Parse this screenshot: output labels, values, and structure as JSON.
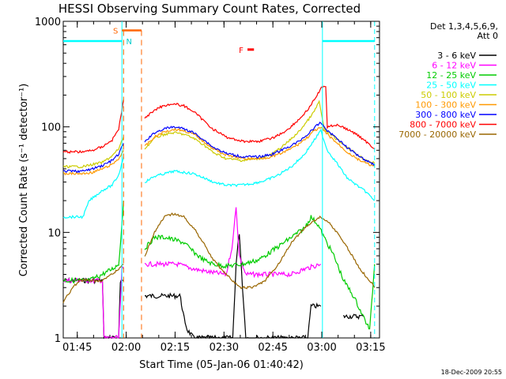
{
  "chart_data": {
    "type": "line",
    "title": "HESSI Observing Summary Count Rates, Corrected",
    "xlabel": "Start Time (05-Jan-06 01:40:42)",
    "ylabel": "Corrected Count Rate (s⁻¹ detector⁻¹)",
    "ylim": [
      1,
      1000
    ],
    "yscale": "log",
    "xlim_minutes": [
      0,
      97
    ],
    "x_ticks": [
      {
        "m": 4.3,
        "label": "01:45"
      },
      {
        "m": 19.3,
        "label": "02:00"
      },
      {
        "m": 34.3,
        "label": "02:15"
      },
      {
        "m": 49.3,
        "label": "02:30"
      },
      {
        "m": 64.3,
        "label": "02:45"
      },
      {
        "m": 79.3,
        "label": "03:00"
      },
      {
        "m": 94.3,
        "label": "03:15"
      }
    ],
    "y_ticks": [
      {
        "v": 1,
        "label": "1"
      },
      {
        "v": 10,
        "label": "10"
      },
      {
        "v": 100,
        "label": "100"
      },
      {
        "v": 1000,
        "label": "1000"
      }
    ],
    "legend_header": [
      "Det 1,3,4,5,6,9,",
      "Att 0"
    ],
    "legend_position": "right",
    "series": [
      {
        "name": "3 - 6 keV",
        "color": "#000000",
        "points": [
          [
            0,
            3.5
          ],
          [
            12,
            3.5
          ],
          [
            12.5,
            1.0
          ],
          [
            17,
            1.0
          ],
          [
            17.5,
            3.5
          ],
          [
            18.5,
            3.5
          ]
        ],
        "points2": [
          [
            25,
            2.5
          ],
          [
            36,
            2.5
          ],
          [
            36.5,
            1.8
          ],
          [
            38,
            1.2
          ],
          [
            40,
            1.0
          ],
          [
            46,
            1.0
          ],
          [
            52,
            1.0
          ],
          [
            53,
            5
          ],
          [
            54,
            10
          ],
          [
            55,
            3
          ],
          [
            56,
            1.0
          ],
          [
            75,
            1.0
          ],
          [
            76,
            2.0
          ],
          [
            79,
            2.0
          ]
        ],
        "points3": [
          [
            86,
            1.6
          ],
          [
            92,
            1.6
          ]
        ]
      },
      {
        "name": "6 - 12 keV",
        "color": "#ff00ff",
        "points": [
          [
            0,
            3.5
          ],
          [
            12,
            3.5
          ],
          [
            12.5,
            1.0
          ],
          [
            17,
            1.0
          ],
          [
            18,
            4.5
          ],
          [
            18.5,
            4.5
          ]
        ],
        "points2": [
          [
            25,
            5
          ],
          [
            30,
            5
          ],
          [
            35,
            5
          ],
          [
            40,
            4.5
          ],
          [
            45,
            4.2
          ],
          [
            50,
            4
          ],
          [
            52,
            8
          ],
          [
            53,
            18
          ],
          [
            54,
            6
          ],
          [
            56,
            4
          ],
          [
            62,
            4
          ],
          [
            70,
            4
          ],
          [
            74,
            4.5
          ],
          [
            79,
            5
          ]
        ]
      },
      {
        "name": "12 - 25 keV",
        "color": "#00cc00",
        "points": [
          [
            0,
            3.5
          ],
          [
            8,
            3.5
          ],
          [
            12,
            4.0
          ],
          [
            15,
            4.5
          ],
          [
            17,
            5
          ],
          [
            18,
            12
          ],
          [
            18.5,
            20
          ]
        ],
        "points2": [
          [
            25,
            7
          ],
          [
            28,
            9
          ],
          [
            31,
            9
          ],
          [
            34,
            8.5
          ],
          [
            37,
            8
          ],
          [
            40,
            6.5
          ],
          [
            43,
            5.5
          ],
          [
            46,
            5
          ],
          [
            50,
            4.8
          ],
          [
            55,
            5
          ],
          [
            60,
            5.5
          ],
          [
            65,
            7
          ],
          [
            70,
            9
          ],
          [
            74,
            11
          ],
          [
            76,
            14
          ],
          [
            78,
            12
          ],
          [
            80,
            9
          ],
          [
            83,
            6
          ],
          [
            86,
            3.5
          ],
          [
            89,
            2.5
          ],
          [
            92,
            1.6
          ],
          [
            94,
            1.2
          ],
          [
            95.5,
            5
          ]
        ]
      },
      {
        "name": "25 - 50 keV",
        "color": "#00ffff",
        "points": [
          [
            0,
            14
          ],
          [
            6,
            14
          ],
          [
            8,
            20
          ],
          [
            12,
            25
          ],
          [
            15,
            28
          ],
          [
            17,
            35
          ],
          [
            18.5,
            52
          ]
        ],
        "points2": [
          [
            25,
            30
          ],
          [
            28,
            34
          ],
          [
            31,
            36
          ],
          [
            34,
            38
          ],
          [
            37,
            37
          ],
          [
            40,
            36
          ],
          [
            43,
            33
          ],
          [
            46,
            30
          ],
          [
            50,
            28
          ],
          [
            54,
            28
          ],
          [
            58,
            29
          ],
          [
            62,
            31
          ],
          [
            66,
            35
          ],
          [
            70,
            42
          ],
          [
            74,
            55
          ],
          [
            77,
            75
          ],
          [
            79,
            92
          ],
          [
            81,
            60
          ],
          [
            84,
            45
          ],
          [
            87,
            33
          ],
          [
            90,
            28
          ],
          [
            93,
            24
          ],
          [
            95.5,
            20
          ]
        ]
      },
      {
        "name": "50 - 100 keV",
        "color": "#cccc00",
        "points": [
          [
            0,
            42
          ],
          [
            6,
            42
          ],
          [
            9,
            44
          ],
          [
            12,
            46
          ],
          [
            15,
            53
          ],
          [
            17,
            62
          ],
          [
            18.5,
            80
          ]
        ],
        "points2": [
          [
            25,
            62
          ],
          [
            28,
            78
          ],
          [
            31,
            85
          ],
          [
            34,
            88
          ],
          [
            37,
            85
          ],
          [
            40,
            78
          ],
          [
            43,
            68
          ],
          [
            46,
            57
          ],
          [
            50,
            50
          ],
          [
            55,
            48
          ],
          [
            60,
            50
          ],
          [
            64,
            55
          ],
          [
            68,
            68
          ],
          [
            72,
            88
          ],
          [
            75,
            115
          ],
          [
            77,
            140
          ],
          [
            78.5,
            175
          ],
          [
            80,
            95
          ],
          [
            83,
            80
          ],
          [
            86,
            68
          ],
          [
            89,
            58
          ],
          [
            92,
            50
          ],
          [
            95.5,
            45
          ]
        ]
      },
      {
        "name": "100 - 300 keV",
        "color": "#ff9900",
        "points": [
          [
            0,
            36
          ],
          [
            6,
            36
          ],
          [
            9,
            37
          ],
          [
            12,
            40
          ],
          [
            15,
            44
          ],
          [
            17,
            50
          ],
          [
            18.5,
            60
          ]
        ],
        "points2": [
          [
            25,
            65
          ],
          [
            28,
            80
          ],
          [
            31,
            90
          ],
          [
            34,
            95
          ],
          [
            37,
            92
          ],
          [
            40,
            85
          ],
          [
            43,
            73
          ],
          [
            46,
            62
          ],
          [
            50,
            54
          ],
          [
            55,
            50
          ],
          [
            60,
            50
          ],
          [
            64,
            52
          ],
          [
            68,
            58
          ],
          [
            72,
            68
          ],
          [
            75,
            80
          ],
          [
            77,
            92
          ],
          [
            79,
            98
          ],
          [
            81,
            85
          ],
          [
            84,
            70
          ],
          [
            87,
            58
          ],
          [
            90,
            50
          ],
          [
            93,
            45
          ],
          [
            95.5,
            42
          ]
        ]
      },
      {
        "name": "300 - 800 keV",
        "color": "#0000ff",
        "points": [
          [
            0,
            38
          ],
          [
            6,
            38
          ],
          [
            9,
            40
          ],
          [
            12,
            43
          ],
          [
            15,
            48
          ],
          [
            17,
            55
          ],
          [
            18.5,
            70
          ]
        ],
        "points2": [
          [
            25,
            72
          ],
          [
            28,
            88
          ],
          [
            31,
            96
          ],
          [
            34,
            100
          ],
          [
            37,
            96
          ],
          [
            40,
            88
          ],
          [
            43,
            76
          ],
          [
            46,
            64
          ],
          [
            50,
            56
          ],
          [
            55,
            52
          ],
          [
            60,
            52
          ],
          [
            64,
            55
          ],
          [
            68,
            62
          ],
          [
            72,
            72
          ],
          [
            75,
            85
          ],
          [
            77,
            98
          ],
          [
            79,
            110
          ],
          [
            81,
            92
          ],
          [
            84,
            78
          ],
          [
            87,
            64
          ],
          [
            90,
            55
          ],
          [
            93,
            48
          ],
          [
            95.5,
            44
          ]
        ]
      },
      {
        "name": "800 - 7000 keV",
        "color": "#ff0000",
        "points": [
          [
            0,
            58
          ],
          [
            6,
            58
          ],
          [
            9,
            60
          ],
          [
            12,
            65
          ],
          [
            15,
            75
          ],
          [
            17,
            95
          ],
          [
            18.5,
            180
          ]
        ],
        "points2": [
          [
            25,
            120
          ],
          [
            28,
            145
          ],
          [
            31,
            160
          ],
          [
            34,
            165
          ],
          [
            37,
            158
          ],
          [
            40,
            140
          ],
          [
            43,
            115
          ],
          [
            46,
            95
          ],
          [
            50,
            80
          ],
          [
            55,
            73
          ],
          [
            60,
            73
          ],
          [
            64,
            78
          ],
          [
            68,
            90
          ],
          [
            72,
            115
          ],
          [
            75,
            145
          ],
          [
            77,
            180
          ],
          [
            79,
            230
          ],
          [
            80.5,
            245
          ],
          [
            81,
            100
          ],
          [
            84,
            105
          ],
          [
            87,
            95
          ],
          [
            90,
            85
          ],
          [
            93,
            72
          ],
          [
            95.5,
            62
          ]
        ]
      },
      {
        "name": "7000 - 20000 keV",
        "color": "#996600",
        "points": [
          [
            0,
            2.2
          ],
          [
            3,
            3.0
          ],
          [
            5,
            3.5
          ],
          [
            12,
            3.5
          ],
          [
            15,
            4.0
          ],
          [
            17,
            4.5
          ],
          [
            18.5,
            5
          ]
        ],
        "points2": [
          [
            25,
            6
          ],
          [
            28,
            10
          ],
          [
            31,
            14
          ],
          [
            34,
            15
          ],
          [
            37,
            14
          ],
          [
            40,
            11
          ],
          [
            43,
            8
          ],
          [
            46,
            5.5
          ],
          [
            50,
            4
          ],
          [
            54,
            3
          ],
          [
            58,
            3
          ],
          [
            62,
            3.5
          ],
          [
            66,
            5
          ],
          [
            70,
            8
          ],
          [
            74,
            11
          ],
          [
            77,
            13
          ],
          [
            79,
            14
          ],
          [
            82,
            12
          ],
          [
            85,
            9
          ],
          [
            88,
            6.5
          ],
          [
            91,
            4.5
          ],
          [
            94,
            3.5
          ],
          [
            95.5,
            3
          ]
        ]
      }
    ],
    "orbit_bars": {
      "color": "#00ffff",
      "level": 650,
      "segments": [
        [
          0,
          18
        ],
        [
          79.5,
          95.5
        ]
      ],
      "verticals": [
        18,
        79.5
      ],
      "dashed_verticals": [
        95.5
      ]
    },
    "saa": {
      "label": "S",
      "color": "#ff6600",
      "level": 820,
      "range": [
        18,
        24
      ],
      "dashed_verticals": [
        18.5,
        24
      ]
    },
    "night": {
      "label": "N",
      "color": "#00cccc",
      "level": 650,
      "m": 20.2
    },
    "flare": {
      "label": "F",
      "color": "#ff0000",
      "level": 540,
      "range": [
        56.5,
        58.5
      ]
    },
    "timestamp": "18-Dec-2009 20:55",
    "grid": false
  }
}
